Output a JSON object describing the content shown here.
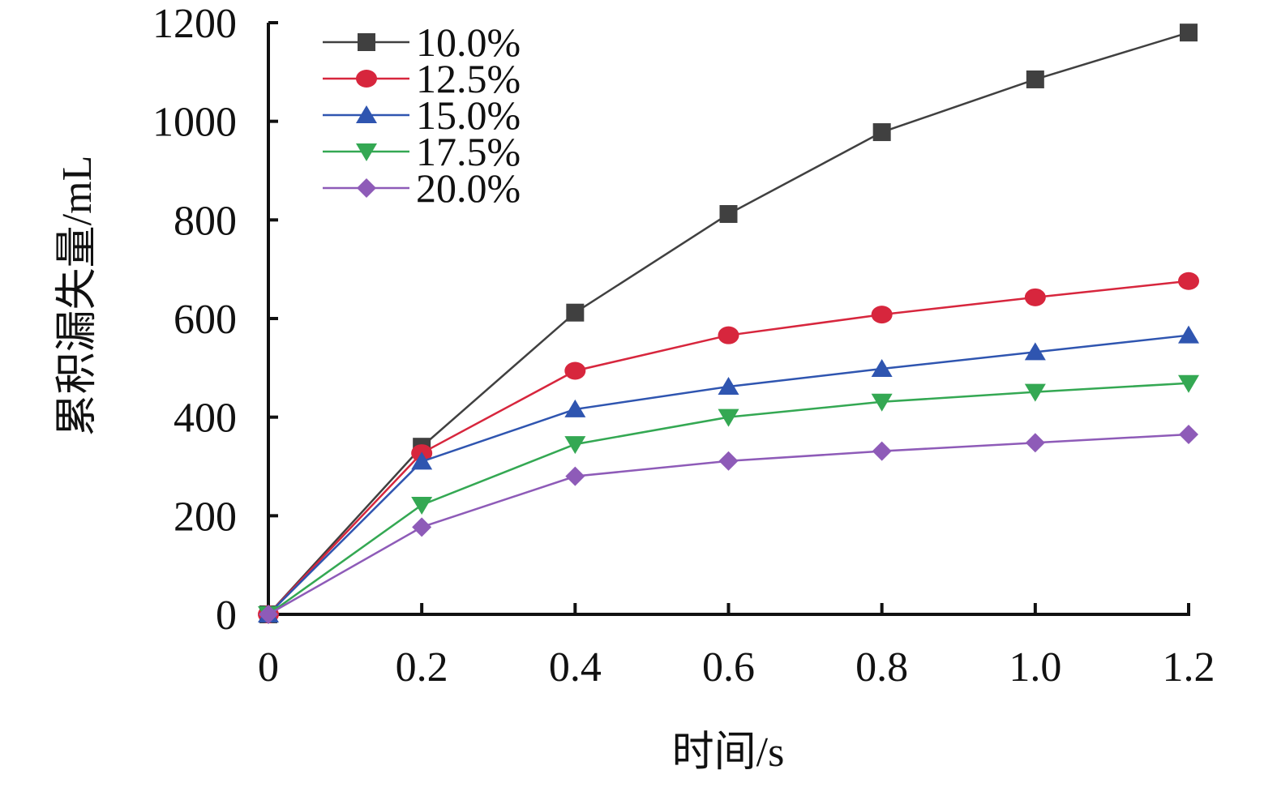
{
  "chart_data": {
    "type": "line",
    "title": "",
    "xlabel": "时间/s",
    "ylabel": "累积漏失量/mL",
    "x": [
      0,
      0.2,
      0.4,
      0.6,
      0.8,
      1.0,
      1.2
    ],
    "x_tick_labels": [
      "0",
      "0.2",
      "0.4",
      "0.6",
      "0.8",
      "1.0",
      "1.2"
    ],
    "y_ticks": [
      0,
      200,
      400,
      600,
      800,
      1000,
      1200
    ],
    "y_tick_labels": [
      "0",
      "200",
      "400",
      "600",
      "800",
      "1000",
      "1200"
    ],
    "xlim": [
      0,
      1.2
    ],
    "ylim": [
      0,
      1200
    ],
    "grid": false,
    "legend_position": "top-left",
    "series": [
      {
        "name": "10.0%",
        "color": "#404040",
        "marker": "square",
        "values": [
          0,
          340,
          612,
          812,
          978,
          1085,
          1180
        ]
      },
      {
        "name": "12.5%",
        "color": "#d7263d",
        "marker": "circle",
        "values": [
          0,
          327,
          494,
          566,
          608,
          643,
          676
        ]
      },
      {
        "name": "15.0%",
        "color": "#2f55b0",
        "marker": "triangle-up",
        "values": [
          0,
          310,
          416,
          462,
          498,
          532,
          566
        ]
      },
      {
        "name": "17.5%",
        "color": "#34a853",
        "marker": "triangle-down",
        "values": [
          0,
          222,
          345,
          400,
          431,
          451,
          469
        ]
      },
      {
        "name": "20.0%",
        "color": "#8e5bb8",
        "marker": "diamond",
        "values": [
          0,
          177,
          280,
          311,
          331,
          348,
          365
        ]
      }
    ]
  }
}
